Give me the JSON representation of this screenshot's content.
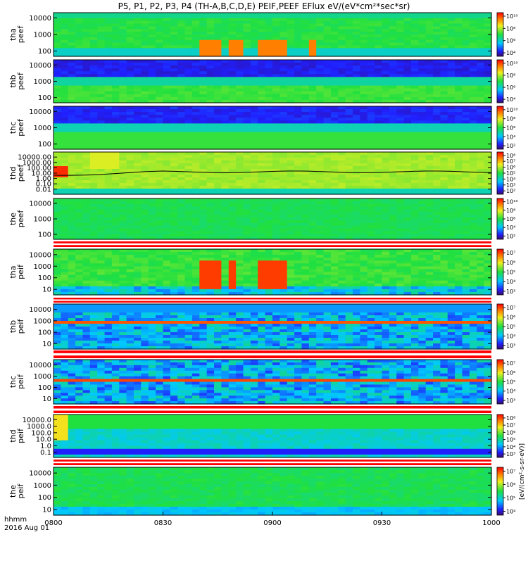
{
  "title": "P5, P1, P2, P3, P4 (TH-A,B,C,D,E) PEIF,PEEF EFlux eV/(eV*cm²*sec*sr)",
  "xaxis": {
    "ticks": [
      "0800",
      "0830",
      "0900",
      "0930",
      "1000"
    ],
    "label": "hhmm",
    "date": "2016 Aug 01"
  },
  "units_label": "[eV/(cm²-s-sr-eV)]",
  "chart_data": {
    "type": "heatmap",
    "title": "P5, P1, P2, P3, P4 (TH-A,B,C,D,E) PEIF,PEEF EFlux eV/(eV*cm²*sec*sr)",
    "x": [
      "0800",
      "0830",
      "0900",
      "0930",
      "1000"
    ],
    "xlabel": "hhmm",
    "xrange": [
      "08:00",
      "10:00"
    ],
    "date": "2016 Aug 01",
    "log_scale_y": true,
    "log_scale_color": true,
    "colormap": "rainbow (violet-blue-cyan-green-yellow-red)",
    "panels": [
      {
        "name": "tha peef",
        "ylabel": [
          "tha",
          "peef"
        ],
        "yticks": [
          "10000",
          "1000",
          "100"
        ],
        "cbticks": [
          "10¹⁰",
          "10⁸",
          "10⁶",
          "10⁴"
        ],
        "dominant": "green",
        "features": "hot red-yellow bursts ~0833-0848 and ~0900"
      },
      {
        "name": "thb peef",
        "ylabel": [
          "thb",
          "peef"
        ],
        "yticks": [
          "10000",
          "1000",
          "100"
        ],
        "cbticks": [
          "10¹⁰",
          "10⁸",
          "10⁶",
          "10⁴"
        ],
        "dominant": "dark violet top, green bottom"
      },
      {
        "name": "thc peef",
        "ylabel": [
          "thc",
          "peef"
        ],
        "yticks": [
          "10000",
          "1000",
          "100"
        ],
        "cbticks": [
          "10¹⁰",
          "10⁸",
          "10⁶",
          "10⁴",
          "10²"
        ],
        "dominant": "dark violet top, green bottom"
      },
      {
        "name": "thd peef",
        "ylabel": [
          "thd",
          "peef"
        ],
        "yticks": [
          "10000.00",
          "1000.00",
          "100.00",
          "10.00",
          "1.00",
          "0.10",
          "0.01"
        ],
        "cbticks": [
          "10⁸",
          "10⁷",
          "10⁶",
          "10⁵",
          "10⁴",
          "10³",
          "10²"
        ],
        "dominant": "yellow-green",
        "features": "black potential line near 10 eV"
      },
      {
        "name": "the peef",
        "ylabel": [
          "the",
          "peef"
        ],
        "yticks": [
          "10000",
          "1000",
          "100"
        ],
        "cbticks": [
          "10¹⁰",
          "10⁸",
          "10⁶",
          "10⁴",
          "10²"
        ],
        "dominant": "green"
      },
      {
        "name": "tha peif",
        "ylabel": [
          "tha",
          "peif"
        ],
        "yticks": [
          "10000",
          "1000",
          "100",
          "10"
        ],
        "cbticks": [
          "10⁷",
          "10⁶",
          "10⁵",
          "10⁴",
          "10³"
        ],
        "dominant": "green-cyan",
        "features": "red bursts ~0833-0900 and ~0905"
      },
      {
        "name": "thb peif",
        "ylabel": [
          "thb",
          "peif"
        ],
        "yticks": [
          "10000",
          "1000",
          "100",
          "10"
        ],
        "cbticks": [
          "10⁷",
          "10⁶",
          "10⁵",
          "10⁴",
          "10³"
        ],
        "dominant": "blue",
        "features": "yellow-red band near 700 eV"
      },
      {
        "name": "thc peif",
        "ylabel": [
          "thc",
          "peif"
        ],
        "yticks": [
          "10000",
          "1000",
          "100",
          "10"
        ],
        "cbticks": [
          "10⁷",
          "10⁶",
          "10⁵",
          "10⁴",
          "10³"
        ],
        "dominant": "blue",
        "features": "yellow-red band near 700 eV"
      },
      {
        "name": "thd peif",
        "ylabel": [
          "thd",
          "peif"
        ],
        "yticks": [
          "10000.0",
          "1000.0",
          "100.0",
          "10.0",
          "1.0",
          "0.1"
        ],
        "cbticks": [
          "10⁸",
          "10⁷",
          "10⁶",
          "10⁵",
          "10⁴",
          "10³"
        ],
        "dominant": "cyan-blue"
      },
      {
        "name": "the peif",
        "ylabel": [
          "the",
          "peif"
        ],
        "yticks": [
          "10000",
          "1000",
          "100",
          "10"
        ],
        "cbticks": [
          "10⁷",
          "10⁶",
          "10⁵",
          "10⁴"
        ],
        "dominant": "green-cyan"
      }
    ]
  }
}
